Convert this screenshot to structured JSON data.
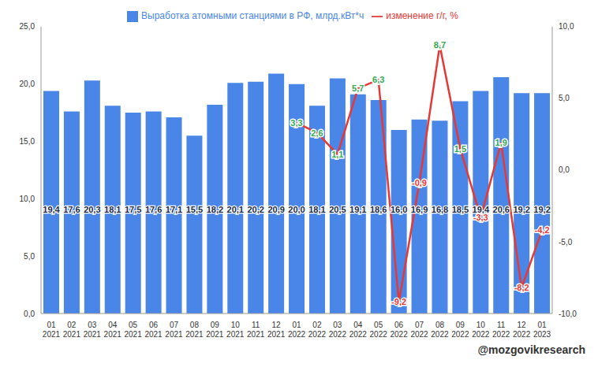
{
  "chart_data": {
    "type": "bar",
    "categories": [
      "01\n2021",
      "02\n2021",
      "03\n2021",
      "04\n2021",
      "05\n2021",
      "06\n2021",
      "07\n2021",
      "08\n2021",
      "09\n2021",
      "10\n2021",
      "11\n2021",
      "12\n2021",
      "01\n2022",
      "02\n2022",
      "03\n2022",
      "04\n2022",
      "05\n2022",
      "06\n2022",
      "07\n2022",
      "08\n2022",
      "09\n2022",
      "10\n2022",
      "11\n2022",
      "12\n2022",
      "01\n2023"
    ],
    "series": [
      {
        "name": "Выработка атомными станциями в РФ, млрд.кВт*ч",
        "type": "bar",
        "color": "#4a86e8",
        "values": [
          19.4,
          17.6,
          20.3,
          18.1,
          17.5,
          17.6,
          17.1,
          15.5,
          18.2,
          20.1,
          20.2,
          20.9,
          20.0,
          18.1,
          20.5,
          19.1,
          18.6,
          16.0,
          16.9,
          16.8,
          18.5,
          19.4,
          20.6,
          19.2,
          19.2
        ],
        "value_labels": [
          "19,4",
          "17,6",
          "20,3",
          "18,1",
          "17,5",
          "17,6",
          "17,1",
          "15,5",
          "18,2",
          "20,1",
          "20,2",
          "20,9",
          "20,0",
          "18,1",
          "20,5",
          "19,1",
          "18,6",
          "16,0",
          "16,9",
          "16,8",
          "18,5",
          "19,4",
          "20,6",
          "19,2",
          "19,2"
        ]
      },
      {
        "name": "изменение г/г, %",
        "type": "line",
        "axis": "y2",
        "color": "#e53935",
        "marker": "none",
        "values": [
          null,
          null,
          null,
          null,
          null,
          null,
          null,
          null,
          null,
          null,
          null,
          null,
          3.3,
          2.6,
          1.1,
          5.7,
          6.3,
          -9.2,
          -0.9,
          8.7,
          1.5,
          -3.3,
          1.9,
          -8.2,
          -4.2
        ],
        "value_labels": [
          null,
          null,
          null,
          null,
          null,
          null,
          null,
          null,
          null,
          null,
          null,
          null,
          "3,3",
          "2,6",
          "1,1",
          "5,7",
          "6,3",
          "-9,2",
          "-0,9",
          "8,7",
          "1,5",
          "-3,3",
          "1,9",
          "-8,2",
          "-4,2"
        ]
      }
    ],
    "ylim": [
      0,
      25
    ],
    "yticks": [
      {
        "value": 0,
        "label": "0,0"
      },
      {
        "value": 5,
        "label": "5,0"
      },
      {
        "value": 10,
        "label": "10,0"
      },
      {
        "value": 15,
        "label": "15,0"
      },
      {
        "value": 20,
        "label": "20,0"
      },
      {
        "value": 25,
        "label": "25,0"
      }
    ],
    "y2lim": [
      -10,
      10
    ],
    "y2ticks": [
      {
        "value": -10,
        "label": "-10,0"
      },
      {
        "value": -5,
        "label": "-5,0"
      },
      {
        "value": 0,
        "label": "0,0"
      },
      {
        "value": 5,
        "label": "5,0"
      },
      {
        "value": 10,
        "label": "10,0"
      }
    ],
    "grid": false,
    "data_labels": true,
    "legend": "top",
    "annotations": [
      "@mozgovikresearch"
    ]
  }
}
